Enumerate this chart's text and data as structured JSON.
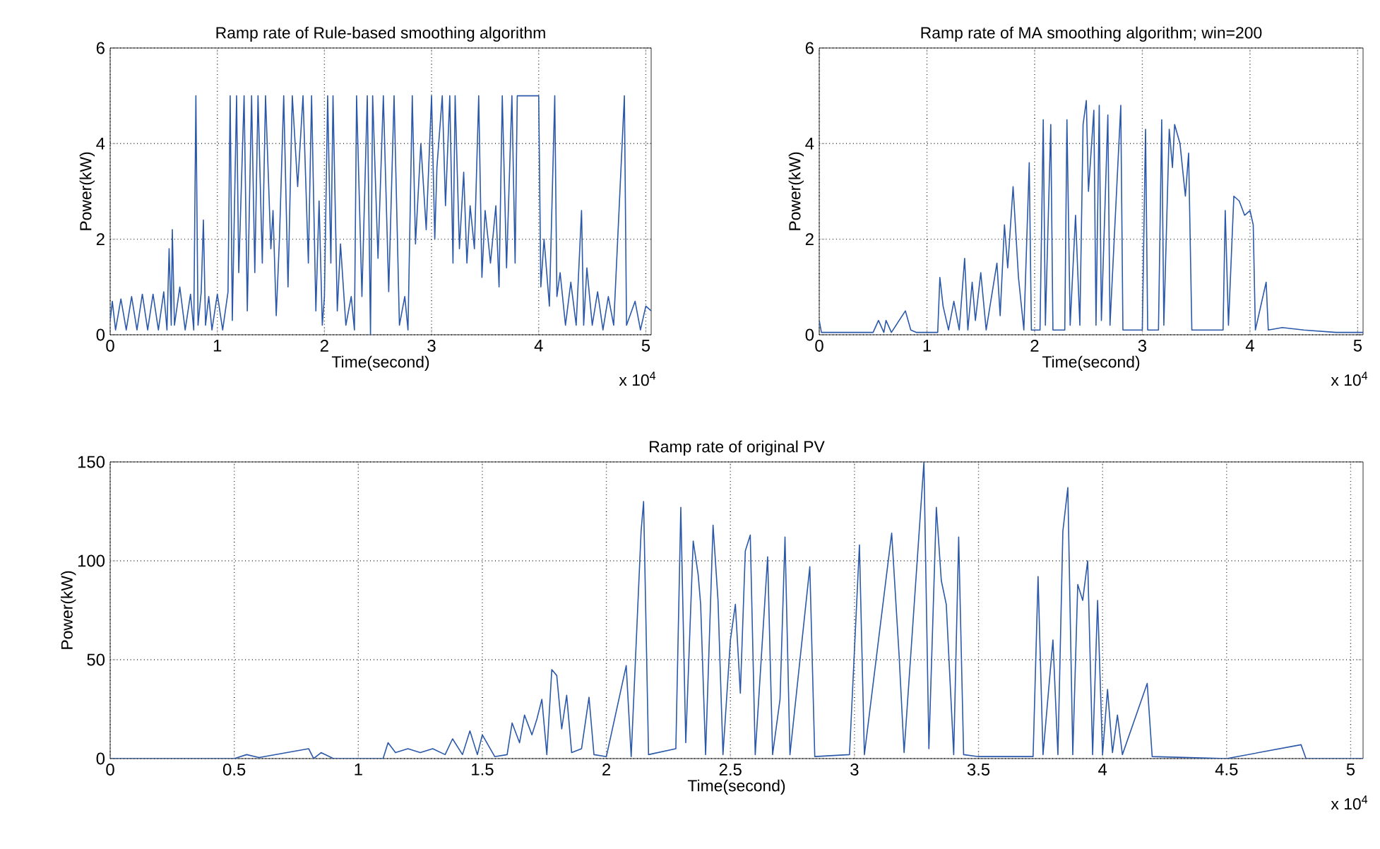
{
  "chart_data": [
    {
      "type": "line",
      "title": "Ramp rate of Rule-based smoothing algorithm",
      "xlabel": "Time(second)",
      "ylabel": "Power(kW)",
      "grid": true,
      "line_style": "solid",
      "xlim": [
        0,
        5.05
      ],
      "ylim": [
        0,
        6
      ],
      "xticks": [
        0,
        1,
        2,
        3,
        4,
        5
      ],
      "yticks": [
        0,
        2,
        4,
        6
      ],
      "annotations": [
        "x 10$^{4}$"
      ],
      "x": [
        0,
        0.02,
        0.05,
        0.1,
        0.15,
        0.2,
        0.25,
        0.3,
        0.35,
        0.4,
        0.45,
        0.5,
        0.53,
        0.55,
        0.57,
        0.58,
        0.6,
        0.65,
        0.7,
        0.75,
        0.78,
        0.8,
        0.82,
        0.85,
        0.87,
        0.89,
        0.92,
        0.95,
        1.0,
        1.05,
        1.1,
        1.12,
        1.14,
        1.18,
        1.2,
        1.25,
        1.28,
        1.32,
        1.35,
        1.38,
        1.42,
        1.45,
        1.5,
        1.52,
        1.55,
        1.58,
        1.62,
        1.66,
        1.7,
        1.75,
        1.8,
        1.85,
        1.88,
        1.92,
        1.95,
        1.98,
        2.0,
        2.03,
        2.06,
        2.08,
        2.12,
        2.15,
        2.2,
        2.25,
        2.28,
        2.3,
        2.35,
        2.4,
        2.43,
        2.45,
        2.5,
        2.55,
        2.6,
        2.65,
        2.7,
        2.75,
        2.78,
        2.82,
        2.85,
        2.9,
        2.95,
        3.0,
        3.03,
        3.05,
        3.1,
        3.13,
        3.17,
        3.2,
        3.22,
        3.26,
        3.3,
        3.33,
        3.36,
        3.4,
        3.44,
        3.47,
        3.5,
        3.55,
        3.6,
        3.63,
        3.66,
        3.7,
        3.75,
        3.78,
        3.8,
        4.0,
        4.02,
        4.05,
        4.1,
        4.15,
        4.17,
        4.2,
        4.25,
        4.3,
        4.35,
        4.4,
        4.42,
        4.45,
        4.5,
        4.55,
        4.6,
        4.65,
        4.7,
        4.8,
        4.82,
        4.9,
        4.95,
        5.0,
        5.05
      ],
      "series": [
        {
          "color": "#2b58a8",
          "values": [
            0.3,
            0.7,
            0.1,
            0.75,
            0.1,
            0.8,
            0.1,
            0.85,
            0.1,
            0.85,
            0.1,
            0.9,
            0.1,
            1.8,
            0.2,
            2.2,
            0.2,
            1.0,
            0.1,
            0.85,
            0.1,
            5.0,
            0.2,
            0.9,
            2.4,
            0.2,
            0.8,
            0.1,
            0.85,
            0.1,
            0.9,
            5.0,
            0.3,
            5.0,
            1.3,
            5.0,
            0.5,
            5.0,
            1.3,
            5.0,
            1.5,
            5.0,
            1.8,
            2.6,
            0.4,
            2.0,
            5.0,
            1.0,
            5.0,
            3.1,
            5.0,
            1.5,
            5.0,
            0.5,
            2.8,
            0.2,
            0.8,
            5.0,
            1.5,
            5.0,
            0.5,
            1.9,
            0.2,
            0.8,
            0.1,
            5.0,
            0.8,
            5.0,
            0,
            5.0,
            1.6,
            5.0,
            0.9,
            5.0,
            0.2,
            0.8,
            0.1,
            5.0,
            1.9,
            4.0,
            2.2,
            5.0,
            2.0,
            3.5,
            5.0,
            2.7,
            5.0,
            1.5,
            5.0,
            1.8,
            3.4,
            1.5,
            2.7,
            1.8,
            5.0,
            1.2,
            2.6,
            1.5,
            2.7,
            1.0,
            5.0,
            1.4,
            5.0,
            1.5,
            5.0,
            5.0,
            1.0,
            2.0,
            0.6,
            5.0,
            0.8,
            1.3,
            0.2,
            1.1,
            0.2,
            2.6,
            0.2,
            1.4,
            0.2,
            0.9,
            0.1,
            0.8,
            0.2,
            5.0,
            0.2,
            0.7,
            0.1,
            0.6,
            0.5
          ]
        }
      ]
    },
    {
      "type": "line",
      "title": "Ramp rate of MA smoothing algorithm; win=200",
      "xlabel": "Time(second)",
      "ylabel": "Power(kW)",
      "grid": true,
      "line_style": "solid",
      "xlim": [
        0,
        5.05
      ],
      "ylim": [
        0,
        6
      ],
      "xticks": [
        0,
        1,
        2,
        3,
        4,
        5
      ],
      "yticks": [
        0,
        2,
        4,
        6
      ],
      "annotations": [
        "x 10$^{4}$"
      ],
      "x": [
        0,
        0.02,
        0.5,
        0.55,
        0.6,
        0.62,
        0.67,
        0.8,
        0.85,
        0.9,
        1.1,
        1.12,
        1.15,
        1.2,
        1.25,
        1.3,
        1.35,
        1.38,
        1.42,
        1.45,
        1.5,
        1.55,
        1.65,
        1.68,
        1.72,
        1.75,
        1.8,
        1.85,
        1.9,
        1.95,
        1.97,
        2.05,
        2.08,
        2.1,
        2.15,
        2.17,
        2.28,
        2.3,
        2.33,
        2.38,
        2.42,
        2.45,
        2.48,
        2.5,
        2.55,
        2.57,
        2.6,
        2.62,
        2.68,
        2.7,
        2.8,
        2.82,
        3.0,
        3.03,
        3.05,
        3.15,
        3.18,
        3.2,
        3.25,
        3.28,
        3.3,
        3.35,
        3.4,
        3.43,
        3.46,
        3.75,
        3.77,
        3.8,
        3.85,
        3.9,
        3.95,
        4.0,
        4.03,
        4.05,
        4.15,
        4.17,
        4.3,
        4.5,
        4.8,
        5.05
      ],
      "series": [
        {
          "color": "#2b58a8",
          "values": [
            0.3,
            0.05,
            0.05,
            0.3,
            0.05,
            0.3,
            0.05,
            0.5,
            0.1,
            0.05,
            0.05,
            1.2,
            0.6,
            0.1,
            0.7,
            0.1,
            1.6,
            0.1,
            1.1,
            0.3,
            1.3,
            0.1,
            1.5,
            0.4,
            2.3,
            1.4,
            3.1,
            1.2,
            0.1,
            3.6,
            0.1,
            0.1,
            4.5,
            0.2,
            4.4,
            0.1,
            0.1,
            4.5,
            0.2,
            2.5,
            0.2,
            4.4,
            4.9,
            3.0,
            4.7,
            0.2,
            4.8,
            0.3,
            4.6,
            0.2,
            4.8,
            0.1,
            0.1,
            4.3,
            0.1,
            0.1,
            4.5,
            0.2,
            4.3,
            3.5,
            4.4,
            4.0,
            2.9,
            3.8,
            0.1,
            0.1,
            2.6,
            0.2,
            2.9,
            2.8,
            2.5,
            2.6,
            2.3,
            0.1,
            1.1,
            0.1,
            0.15,
            0.1,
            0.05,
            0.05
          ]
        }
      ]
    },
    {
      "type": "line",
      "title": "Ramp rate of original PV",
      "xlabel": "Time(second)",
      "ylabel": "Power(kW)",
      "grid": true,
      "line_style": "solid",
      "xlim": [
        0,
        5.05
      ],
      "ylim": [
        0,
        150
      ],
      "xticks": [
        0,
        0.5,
        1,
        1.5,
        2,
        2.5,
        3,
        3.5,
        4,
        4.5,
        5
      ],
      "yticks": [
        0,
        50,
        100,
        150
      ],
      "annotations": [
        "x 10$^{4}$"
      ],
      "x": [
        0,
        0.5,
        0.55,
        0.6,
        0.8,
        0.82,
        0.85,
        0.9,
        1.1,
        1.12,
        1.15,
        1.2,
        1.25,
        1.3,
        1.35,
        1.38,
        1.42,
        1.45,
        1.48,
        1.5,
        1.55,
        1.6,
        1.62,
        1.65,
        1.67,
        1.7,
        1.72,
        1.74,
        1.76,
        1.78,
        1.8,
        1.82,
        1.84,
        1.86,
        1.9,
        1.93,
        1.95,
        2.0,
        2.08,
        2.1,
        2.14,
        2.15,
        2.17,
        2.28,
        2.3,
        2.32,
        2.35,
        2.37,
        2.38,
        2.4,
        2.43,
        2.45,
        2.47,
        2.5,
        2.52,
        2.54,
        2.56,
        2.58,
        2.6,
        2.65,
        2.67,
        2.7,
        2.72,
        2.74,
        2.82,
        2.84,
        2.98,
        3.02,
        3.04,
        3.15,
        3.18,
        3.2,
        3.28,
        3.3,
        3.33,
        3.35,
        3.37,
        3.4,
        3.42,
        3.44,
        3.5,
        3.72,
        3.74,
        3.76,
        3.8,
        3.82,
        3.84,
        3.86,
        3.88,
        3.9,
        3.92,
        3.94,
        3.96,
        3.98,
        4.0,
        4.02,
        4.04,
        4.06,
        4.08,
        4.18,
        4.2,
        4.5,
        4.8,
        4.82,
        5.05
      ],
      "series": [
        {
          "color": "#2b58a8",
          "values": [
            0,
            0,
            2,
            0.5,
            5,
            0,
            3,
            0,
            0,
            8,
            3,
            5,
            3,
            5,
            2,
            10,
            2,
            14,
            2,
            12,
            1,
            2,
            18,
            8,
            22,
            12,
            20,
            30,
            2,
            45,
            42,
            15,
            32,
            3,
            5,
            31,
            2,
            1,
            47,
            1,
            115,
            130,
            2,
            5,
            127,
            8,
            110,
            93,
            78,
            2,
            118,
            80,
            2,
            60,
            78,
            33,
            105,
            113,
            2,
            102,
            2,
            30,
            112,
            2,
            97,
            1,
            2,
            108,
            2,
            114,
            52,
            3,
            150,
            5,
            127,
            90,
            78,
            2,
            112,
            2,
            1,
            1,
            92,
            2,
            60,
            2,
            115,
            137,
            2,
            88,
            80,
            100,
            2,
            80,
            2,
            35,
            3,
            22,
            2,
            38,
            1,
            0,
            7,
            0,
            0
          ]
        }
      ]
    }
  ]
}
